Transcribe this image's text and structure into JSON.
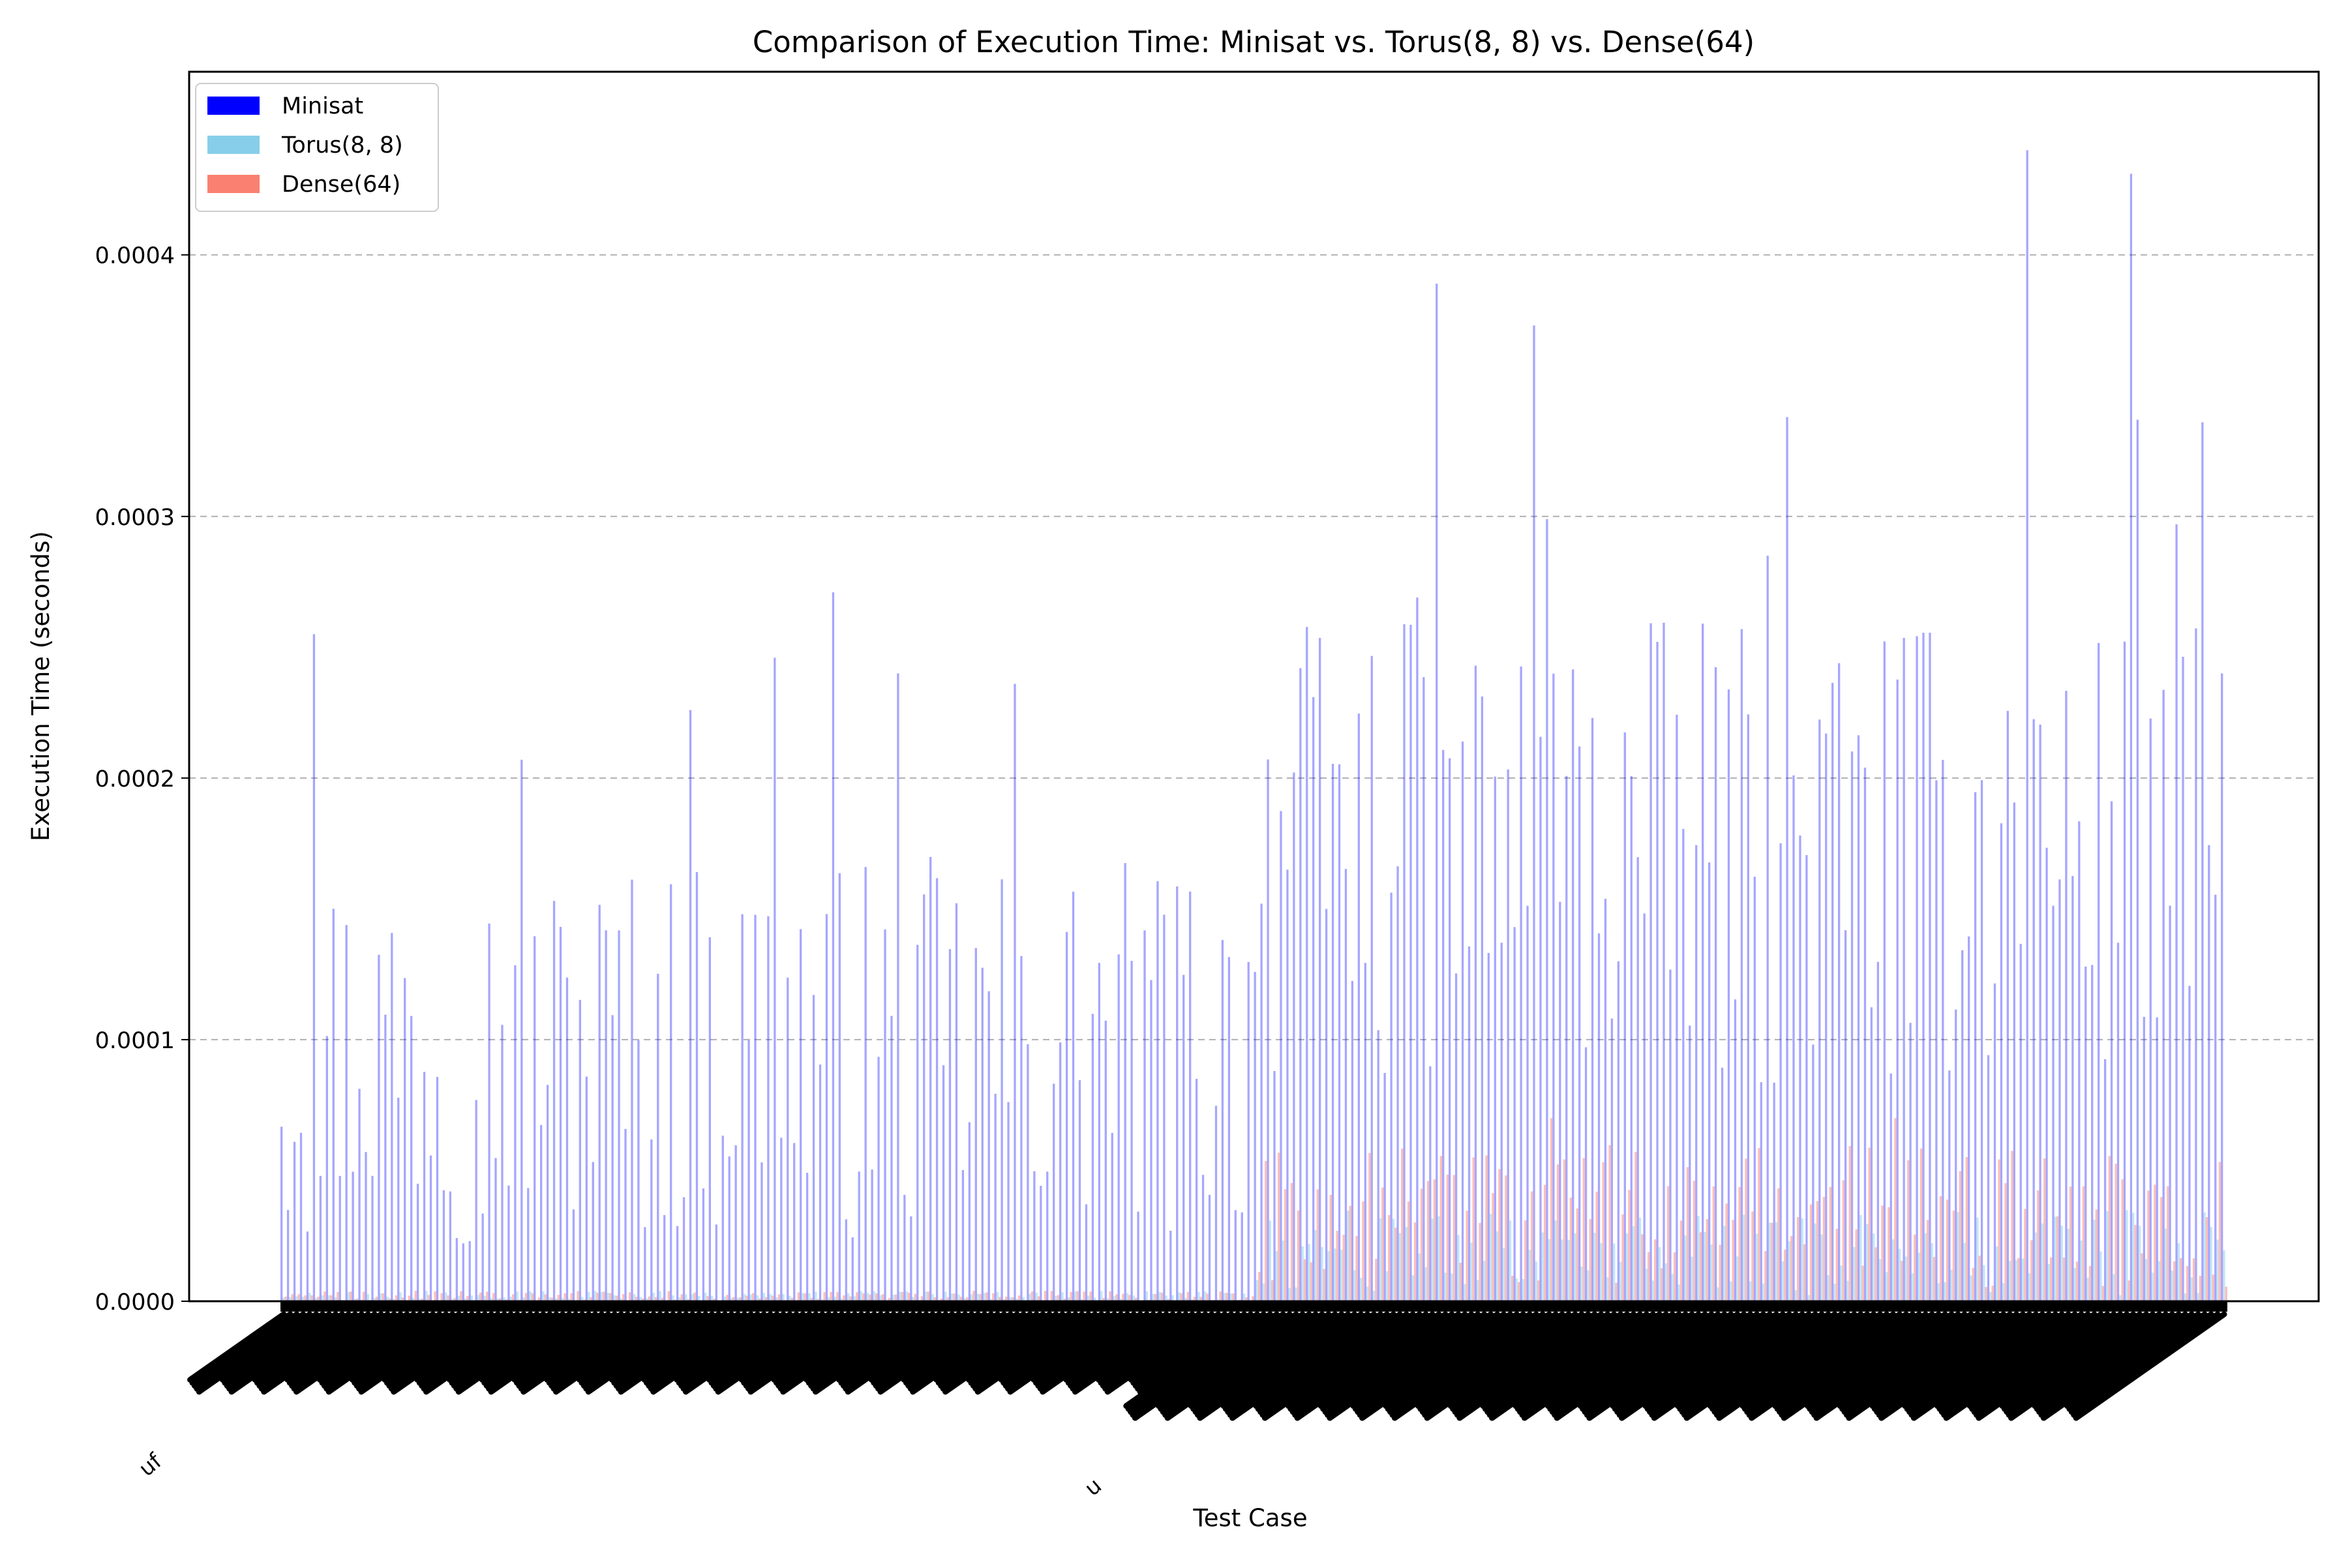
{
  "chart_data": {
    "type": "bar",
    "title": "Comparison of Execution Time: Minisat vs. Torus(8, 8) vs. Dense(64)",
    "xlabel": "Test Case",
    "ylabel": "Execution Time (seconds)",
    "ylim": [
      0,
      0.00047
    ],
    "yticks": [
      0.0,
      0.0001,
      0.0002,
      0.0003,
      0.0004
    ],
    "ytick_labels": [
      "0.0000",
      "0.0001",
      "0.0002",
      "0.0003",
      "0.0004"
    ],
    "grid": "y-dashed",
    "legend_position": "top-left",
    "n_categories": 300,
    "tick_label_visible_fragments": [
      "uf",
      "u"
    ],
    "series": [
      {
        "name": "Minisat",
        "color": "#0000ff",
        "alpha": 0.35,
        "segments": [
          {
            "from": 0,
            "to": 150,
            "low": 2e-05,
            "high": 0.00017
          },
          {
            "from": 150,
            "to": 300,
            "low": 8e-05,
            "high": 0.00026
          }
        ],
        "peaks": [
          {
            "index": 5,
            "value": 0.000255
          },
          {
            "index": 37,
            "value": 0.000207
          },
          {
            "index": 63,
            "value": 0.000226
          },
          {
            "index": 76,
            "value": 0.000246
          },
          {
            "index": 85,
            "value": 0.000271
          },
          {
            "index": 95,
            "value": 0.00024
          },
          {
            "index": 113,
            "value": 0.000236
          },
          {
            "index": 157,
            "value": 0.000242
          },
          {
            "index": 175,
            "value": 0.000269
          },
          {
            "index": 178,
            "value": 0.000389
          },
          {
            "index": 193,
            "value": 0.000373
          },
          {
            "index": 195,
            "value": 0.000299
          },
          {
            "index": 229,
            "value": 0.000285
          },
          {
            "index": 232,
            "value": 0.000338
          },
          {
            "index": 269,
            "value": 0.00044
          },
          {
            "index": 285,
            "value": 0.000431
          },
          {
            "index": 286,
            "value": 0.000337
          },
          {
            "index": 292,
            "value": 0.000297
          },
          {
            "index": 296,
            "value": 0.000336
          },
          {
            "index": 299,
            "value": 0.00024
          }
        ]
      },
      {
        "name": "Torus(8, 8)",
        "color": "#87ceeb",
        "alpha": 0.5,
        "segments": [
          {
            "from": 0,
            "to": 150,
            "low": 0.0,
            "high": 4e-06
          },
          {
            "from": 150,
            "to": 300,
            "low": 2e-06,
            "high": 3.5e-05
          }
        ],
        "peaks": []
      },
      {
        "name": "Dense(64)",
        "color": "#fa8072",
        "alpha": 0.5,
        "segments": [
          {
            "from": 0,
            "to": 150,
            "low": 0.0,
            "high": 4e-06
          },
          {
            "from": 150,
            "to": 300,
            "low": 5e-06,
            "high": 6e-05
          }
        ],
        "peaks": [
          {
            "index": 195,
            "value": 7e-05
          },
          {
            "index": 248,
            "value": 7e-05
          }
        ]
      }
    ]
  }
}
